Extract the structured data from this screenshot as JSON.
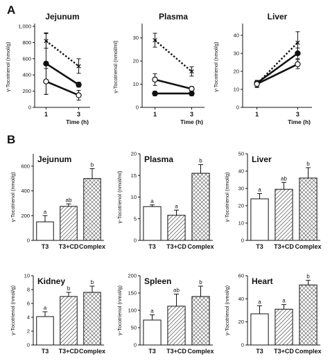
{
  "figure": {
    "label_a": "A",
    "label_b": "B"
  },
  "chart_data": [
    {
      "type": "line",
      "panel": "A",
      "title": "Jejunum",
      "xlabel": "Time (h)",
      "ylabel": "γ-Tocotrienol (nmol/g)",
      "x": [
        1,
        3
      ],
      "xticks": [
        "1",
        "3"
      ],
      "xlim": [
        0.3,
        3.7
      ],
      "ylim": [
        0,
        1000
      ],
      "yticks": [
        "0",
        "200",
        "400",
        "600",
        "800",
        "1,000"
      ],
      "series": [
        {
          "style": "dotted",
          "marker": "cross",
          "values": [
            820,
            510
          ],
          "errors": [
            90,
            90
          ]
        },
        {
          "style": "solid",
          "marker": "filled-circle",
          "values": [
            540,
            280
          ],
          "errors": [
            380,
            30
          ]
        },
        {
          "style": "solid",
          "marker": "open-circle",
          "values": [
            320,
            150
          ],
          "errors": [
            160,
            60
          ]
        }
      ]
    },
    {
      "type": "line",
      "panel": "A",
      "title": "Plasma",
      "xlabel": "Time (h)",
      "ylabel": "γ-Tocotrienol (nmol/ml)",
      "x": [
        1,
        3
      ],
      "xticks": [
        "1",
        "3"
      ],
      "xlim": [
        0.3,
        3.7
      ],
      "ylim": [
        0,
        35
      ],
      "yticks": [
        "0",
        "10",
        "20",
        "30"
      ],
      "series": [
        {
          "style": "dotted",
          "marker": "cross",
          "values": [
            29,
            15.5
          ],
          "errors": [
            3,
            2
          ]
        },
        {
          "style": "solid",
          "marker": "open-circle",
          "values": [
            12,
            8
          ],
          "errors": [
            2.5,
            1
          ]
        },
        {
          "style": "solid",
          "marker": "filled-circle",
          "values": [
            6,
            6
          ],
          "errors": [
            1,
            1
          ]
        }
      ]
    },
    {
      "type": "line",
      "panel": "A",
      "title": "Liver",
      "xlabel": "Time (h)",
      "ylabel": "γ-Tocotrienol (nmol/g)",
      "x": [
        1,
        3
      ],
      "xticks": [
        "1",
        "3"
      ],
      "xlim": [
        0.3,
        3.7
      ],
      "ylim": [
        0,
        45
      ],
      "yticks": [
        "0",
        "10",
        "20",
        "30",
        "40"
      ],
      "series": [
        {
          "style": "dotted",
          "marker": "cross",
          "values": [
            13,
            36
          ],
          "errors": [
            2,
            6
          ]
        },
        {
          "style": "solid",
          "marker": "filled-circle",
          "values": [
            13.5,
            30
          ],
          "errors": [
            1.5,
            3
          ]
        },
        {
          "style": "solid",
          "marker": "open-circle",
          "values": [
            13,
            24
          ],
          "errors": [
            1.5,
            2.5
          ]
        }
      ]
    },
    {
      "type": "bar",
      "panel": "B",
      "title": "Jejunum",
      "ylabel": "γ-Tocotrienol (nmol/g)",
      "categories": [
        "T3",
        "T3+CD",
        "Complex"
      ],
      "values": [
        150,
        275,
        500
      ],
      "errors": [
        50,
        20,
        80
      ],
      "letters": [
        "a",
        "ab",
        "b"
      ],
      "ylim": [
        0,
        700
      ],
      "yticks": [
        "0",
        "200",
        "400",
        "600"
      ]
    },
    {
      "type": "bar",
      "panel": "B",
      "title": "Plasma",
      "ylabel": "γ-Tocotrienol (nmol/ml)",
      "categories": [
        "T3",
        "T3+CD",
        "Complex"
      ],
      "values": [
        7.8,
        5.8,
        15.5
      ],
      "errors": [
        0.4,
        1.2,
        2
      ],
      "letters": [
        "a",
        "a",
        "b"
      ],
      "ylim": [
        0,
        20
      ],
      "yticks": [
        "0",
        "5",
        "10",
        "15",
        "20"
      ]
    },
    {
      "type": "bar",
      "panel": "B",
      "title": "Liver",
      "ylabel": "γ-Tocotrienol (nmol/g)",
      "categories": [
        "T3",
        "T3+CD",
        "Complex"
      ],
      "values": [
        24,
        29.5,
        36
      ],
      "errors": [
        3,
        4,
        6
      ],
      "letters": [
        "a",
        "ab",
        "b"
      ],
      "ylim": [
        0,
        50
      ],
      "yticks": [
        "0",
        "10",
        "20",
        "30",
        "40",
        "50"
      ]
    },
    {
      "type": "bar",
      "panel": "B",
      "title": "Kidney",
      "ylabel": "γ-Tocotrienol (nmol/g)",
      "categories": [
        "T3",
        "T3+CD",
        "Complex"
      ],
      "values": [
        4.1,
        7.0,
        7.6
      ],
      "errors": [
        0.7,
        0.6,
        0.9
      ],
      "letters": [
        "a",
        "b",
        "b"
      ],
      "ylim": [
        0,
        10
      ],
      "yticks": [
        "0",
        "2",
        "4",
        "6",
        "8",
        "10"
      ]
    },
    {
      "type": "bar",
      "panel": "B",
      "title": "Spleen",
      "ylabel": "γ-Tocotrienol (nmol/g)",
      "categories": [
        "T3",
        "T3+CD",
        "Complex"
      ],
      "values": [
        72,
        112,
        140
      ],
      "errors": [
        15,
        35,
        30
      ],
      "letters": [
        "a",
        "ab",
        "b"
      ],
      "ylim": [
        0,
        200
      ],
      "yticks": [
        "0",
        "50",
        "100",
        "150",
        "200"
      ]
    },
    {
      "type": "bar",
      "panel": "B",
      "title": "Heart",
      "ylabel": "γ-Tocotrienol (nmol/g)",
      "categories": [
        "T3",
        "T3+CD",
        "Complex"
      ],
      "values": [
        27,
        31,
        52
      ],
      "errors": [
        7,
        4,
        4
      ],
      "letters": [
        "a",
        "a",
        "b"
      ],
      "ylim": [
        0,
        60
      ],
      "yticks": [
        "0",
        "20",
        "40",
        "60"
      ]
    }
  ]
}
